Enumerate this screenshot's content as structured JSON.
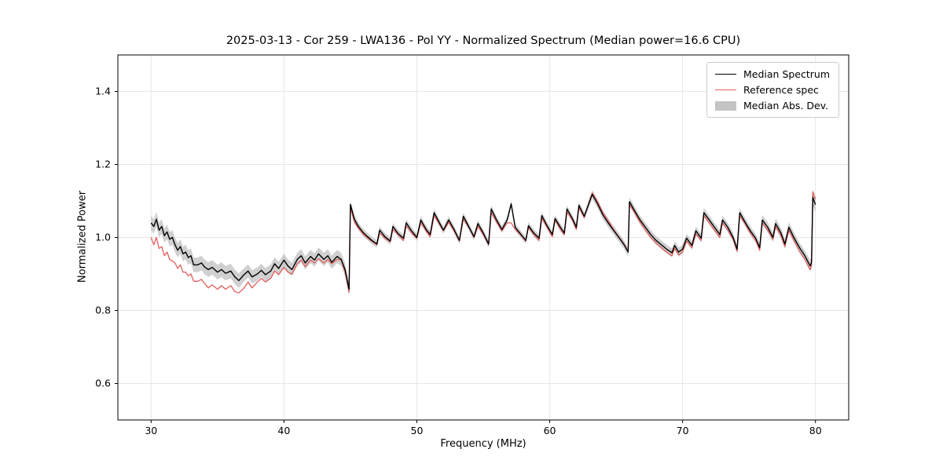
{
  "chart_data": {
    "type": "line",
    "title": "2025-03-13 - Cor 259 - LWA136 - Pol YY - Normalized Spectrum (Median power=16.6 CPU)",
    "xlabel": "Frequency (MHz)",
    "ylabel": "Normalized Power",
    "xlim": [
      27.5,
      82.5
    ],
    "ylim": [
      0.5,
      1.5
    ],
    "grid": true,
    "legend_position": "upper right",
    "xticks": [
      {
        "v": 30,
        "label": "30"
      },
      {
        "v": 40,
        "label": "40"
      },
      {
        "v": 50,
        "label": "50"
      },
      {
        "v": 60,
        "label": "60"
      },
      {
        "v": 70,
        "label": "70"
      },
      {
        "v": 80,
        "label": "80"
      }
    ],
    "yticks": [
      {
        "v": 0.6,
        "label": "0.6"
      },
      {
        "v": 0.8,
        "label": "0.8"
      },
      {
        "v": 1.0,
        "label": "1.0"
      },
      {
        "v": 1.2,
        "label": "1.2"
      },
      {
        "v": 1.4,
        "label": "1.4"
      }
    ],
    "colors": {
      "median": "#000000",
      "reference": "#e25d5d",
      "band": "#aaaaaa",
      "grid": "#e6e6e6"
    },
    "legend": [
      {
        "label": "Median Spectrum",
        "swatch": "line",
        "color": "#000000"
      },
      {
        "label": "Reference spec",
        "swatch": "line",
        "color": "#e25d5d"
      },
      {
        "label": "Median Abs. Dev.",
        "swatch": "band",
        "color": "#c4c4c4"
      }
    ],
    "series_format": [
      "frequency_mhz",
      "median_spectrum",
      "reference_spec",
      "median_abs_dev"
    ],
    "points": [
      [
        30.0,
        1.04,
        1.0,
        0.02
      ],
      [
        30.2,
        1.03,
        0.98,
        0.02
      ],
      [
        30.4,
        1.05,
        1.0,
        0.02
      ],
      [
        30.6,
        1.02,
        0.97,
        0.02
      ],
      [
        30.8,
        1.03,
        0.975,
        0.02
      ],
      [
        31.0,
        1.005,
        0.95,
        0.02
      ],
      [
        31.2,
        1.015,
        0.96,
        0.02
      ],
      [
        31.4,
        0.995,
        0.94,
        0.02
      ],
      [
        31.6,
        1.0,
        0.935,
        0.02
      ],
      [
        31.8,
        0.98,
        0.93,
        0.02
      ],
      [
        32.0,
        0.965,
        0.915,
        0.02
      ],
      [
        32.2,
        0.975,
        0.925,
        0.02
      ],
      [
        32.4,
        0.955,
        0.905,
        0.02
      ],
      [
        32.6,
        0.96,
        0.905,
        0.02
      ],
      [
        32.8,
        0.945,
        0.895,
        0.02
      ],
      [
        33.0,
        0.95,
        0.9,
        0.02
      ],
      [
        33.2,
        0.925,
        0.88,
        0.02
      ],
      [
        33.5,
        0.925,
        0.88,
        0.02
      ],
      [
        33.8,
        0.93,
        0.885,
        0.02
      ],
      [
        34.0,
        0.92,
        0.875,
        0.02
      ],
      [
        34.3,
        0.912,
        0.862,
        0.02
      ],
      [
        34.6,
        0.918,
        0.87,
        0.02
      ],
      [
        35.0,
        0.905,
        0.858,
        0.02
      ],
      [
        35.3,
        0.912,
        0.868,
        0.02
      ],
      [
        35.6,
        0.902,
        0.858,
        0.02
      ],
      [
        36.0,
        0.908,
        0.868,
        0.02
      ],
      [
        36.3,
        0.892,
        0.852,
        0.02
      ],
      [
        36.6,
        0.882,
        0.848,
        0.02
      ],
      [
        37.0,
        0.898,
        0.862,
        0.018
      ],
      [
        37.3,
        0.908,
        0.878,
        0.018
      ],
      [
        37.6,
        0.892,
        0.862,
        0.018
      ],
      [
        38.0,
        0.9,
        0.878,
        0.018
      ],
      [
        38.3,
        0.91,
        0.888,
        0.018
      ],
      [
        38.6,
        0.898,
        0.878,
        0.018
      ],
      [
        39.0,
        0.908,
        0.888,
        0.018
      ],
      [
        39.3,
        0.928,
        0.908,
        0.018
      ],
      [
        39.6,
        0.915,
        0.898,
        0.018
      ],
      [
        40.0,
        0.938,
        0.918,
        0.018
      ],
      [
        40.3,
        0.922,
        0.905,
        0.018
      ],
      [
        40.6,
        0.912,
        0.9,
        0.018
      ],
      [
        41.0,
        0.94,
        0.928,
        0.018
      ],
      [
        41.3,
        0.95,
        0.938,
        0.018
      ],
      [
        41.6,
        0.93,
        0.92,
        0.018
      ],
      [
        42.0,
        0.948,
        0.938,
        0.018
      ],
      [
        42.3,
        0.938,
        0.93,
        0.018
      ],
      [
        42.6,
        0.955,
        0.942,
        0.018
      ],
      [
        43.0,
        0.94,
        0.93,
        0.018
      ],
      [
        43.3,
        0.95,
        0.94,
        0.018
      ],
      [
        43.6,
        0.932,
        0.928,
        0.018
      ],
      [
        44.0,
        0.948,
        0.94,
        0.018
      ],
      [
        44.3,
        0.94,
        0.938,
        0.018
      ],
      [
        44.6,
        0.912,
        0.905,
        0.018
      ],
      [
        44.9,
        0.858,
        0.85,
        0.018
      ],
      [
        45.0,
        1.09,
        1.082,
        0.012
      ],
      [
        45.3,
        1.05,
        1.042,
        0.012
      ],
      [
        45.6,
        1.03,
        1.025,
        0.01
      ],
      [
        46.0,
        1.012,
        1.008,
        0.01
      ],
      [
        46.3,
        1.002,
        0.998,
        0.01
      ],
      [
        46.6,
        0.992,
        0.99,
        0.01
      ],
      [
        47.0,
        0.982,
        0.98,
        0.01
      ],
      [
        47.2,
        1.02,
        1.012,
        0.01
      ],
      [
        47.6,
        1.002,
        0.998,
        0.01
      ],
      [
        48.0,
        0.99,
        0.988,
        0.01
      ],
      [
        48.2,
        1.03,
        1.022,
        0.01
      ],
      [
        48.6,
        1.01,
        1.008,
        0.01
      ],
      [
        49.0,
        0.998,
        0.992,
        0.01
      ],
      [
        49.2,
        1.04,
        1.032,
        0.01
      ],
      [
        49.6,
        1.018,
        1.012,
        0.01
      ],
      [
        50.0,
        1.0,
        0.998,
        0.01
      ],
      [
        50.3,
        1.048,
        1.04,
        0.01
      ],
      [
        50.7,
        1.022,
        1.018,
        0.01
      ],
      [
        51.0,
        1.008,
        1.002,
        0.01
      ],
      [
        51.3,
        1.068,
        1.06,
        0.01
      ],
      [
        51.7,
        1.04,
        1.036,
        0.01
      ],
      [
        52.0,
        1.02,
        1.018,
        0.01
      ],
      [
        52.4,
        1.048,
        1.042,
        0.01
      ],
      [
        52.8,
        1.022,
        1.018,
        0.01
      ],
      [
        53.2,
        0.992,
        0.99,
        0.01
      ],
      [
        53.5,
        1.058,
        1.05,
        0.01
      ],
      [
        53.9,
        1.03,
        1.028,
        0.01
      ],
      [
        54.3,
        1.002,
        1.0,
        0.01
      ],
      [
        54.6,
        1.038,
        1.03,
        0.01
      ],
      [
        55.0,
        1.012,
        1.008,
        0.01
      ],
      [
        55.4,
        0.982,
        0.98,
        0.01
      ],
      [
        55.6,
        1.078,
        1.068,
        0.01
      ],
      [
        56.0,
        1.048,
        1.042,
        0.01
      ],
      [
        56.4,
        1.022,
        1.018,
        0.01
      ],
      [
        56.8,
        1.048,
        1.04,
        0.01
      ],
      [
        57.1,
        1.092,
        1.04,
        0.01
      ],
      [
        57.4,
        1.028,
        1.022,
        0.01
      ],
      [
        57.8,
        1.01,
        1.008,
        0.01
      ],
      [
        58.2,
        0.992,
        0.99,
        0.01
      ],
      [
        58.4,
        1.032,
        1.028,
        0.01
      ],
      [
        58.8,
        1.012,
        1.008,
        0.01
      ],
      [
        59.2,
        0.998,
        0.992,
        0.01
      ],
      [
        59.4,
        1.06,
        1.052,
        0.01
      ],
      [
        59.8,
        1.032,
        1.028,
        0.01
      ],
      [
        60.2,
        1.008,
        1.002,
        0.01
      ],
      [
        60.4,
        1.052,
        1.048,
        0.01
      ],
      [
        60.8,
        1.028,
        1.022,
        0.01
      ],
      [
        61.1,
        1.012,
        1.008,
        0.01
      ],
      [
        61.3,
        1.078,
        1.07,
        0.01
      ],
      [
        61.7,
        1.052,
        1.048,
        0.01
      ],
      [
        62.0,
        1.028,
        1.022,
        0.01
      ],
      [
        62.2,
        1.088,
        1.082,
        0.01
      ],
      [
        62.6,
        1.058,
        1.055,
        0.01
      ],
      [
        63.0,
        1.098,
        1.102,
        0.012
      ],
      [
        63.2,
        1.118,
        1.122,
        0.012
      ],
      [
        63.6,
        1.092,
        1.098,
        0.012
      ],
      [
        64.0,
        1.062,
        1.068,
        0.012
      ],
      [
        64.4,
        1.04,
        1.046,
        0.012
      ],
      [
        64.8,
        1.02,
        1.022,
        0.012
      ],
      [
        65.2,
        1.0,
        1.002,
        0.012
      ],
      [
        65.6,
        0.98,
        0.982,
        0.012
      ],
      [
        65.9,
        0.96,
        0.962,
        0.012
      ],
      [
        66.0,
        1.098,
        1.09,
        0.012
      ],
      [
        66.4,
        1.072,
        1.068,
        0.012
      ],
      [
        66.8,
        1.048,
        1.042,
        0.012
      ],
      [
        67.2,
        1.028,
        1.02,
        0.012
      ],
      [
        67.6,
        1.008,
        1.0,
        0.012
      ],
      [
        68.0,
        0.992,
        0.985,
        0.012
      ],
      [
        68.4,
        0.98,
        0.972,
        0.012
      ],
      [
        68.8,
        0.968,
        0.96,
        0.012
      ],
      [
        69.2,
        0.958,
        0.95,
        0.012
      ],
      [
        69.4,
        0.978,
        0.97,
        0.012
      ],
      [
        69.7,
        0.96,
        0.952,
        0.012
      ],
      [
        70.0,
        0.968,
        0.96,
        0.012
      ],
      [
        70.3,
        0.998,
        0.99,
        0.012
      ],
      [
        70.7,
        0.978,
        0.972,
        0.012
      ],
      [
        71.0,
        1.018,
        1.01,
        0.012
      ],
      [
        71.4,
        0.998,
        0.992,
        0.012
      ],
      [
        71.6,
        1.068,
        1.06,
        0.012
      ],
      [
        72.0,
        1.048,
        1.04,
        0.012
      ],
      [
        72.4,
        1.028,
        1.02,
        0.012
      ],
      [
        72.8,
        1.008,
        1.0,
        0.012
      ],
      [
        73.0,
        1.048,
        1.04,
        0.012
      ],
      [
        73.4,
        1.028,
        1.02,
        0.012
      ],
      [
        73.8,
        1.0,
        0.995,
        0.012
      ],
      [
        74.1,
        0.968,
        0.962,
        0.012
      ],
      [
        74.3,
        1.068,
        1.06,
        0.012
      ],
      [
        74.7,
        1.042,
        1.038,
        0.012
      ],
      [
        75.1,
        1.018,
        1.012,
        0.012
      ],
      [
        75.5,
        0.998,
        0.992,
        0.012
      ],
      [
        75.8,
        0.972,
        0.965,
        0.012
      ],
      [
        76.0,
        1.048,
        1.04,
        0.014
      ],
      [
        76.4,
        1.028,
        1.02,
        0.014
      ],
      [
        76.8,
        1.0,
        0.995,
        0.014
      ],
      [
        77.0,
        1.038,
        1.03,
        0.014
      ],
      [
        77.4,
        1.012,
        1.005,
        0.014
      ],
      [
        77.7,
        0.982,
        0.975,
        0.014
      ],
      [
        78.0,
        1.028,
        1.02,
        0.014
      ],
      [
        78.4,
        0.998,
        0.99,
        0.014
      ],
      [
        78.8,
        0.972,
        0.962,
        0.014
      ],
      [
        79.2,
        0.95,
        0.94,
        0.014
      ],
      [
        79.6,
        0.922,
        0.912,
        0.016
      ],
      [
        79.7,
        0.932,
        0.922,
        0.016
      ],
      [
        79.8,
        1.11,
        1.125,
        0.022
      ],
      [
        80.0,
        1.09,
        1.105,
        0.02
      ]
    ]
  }
}
